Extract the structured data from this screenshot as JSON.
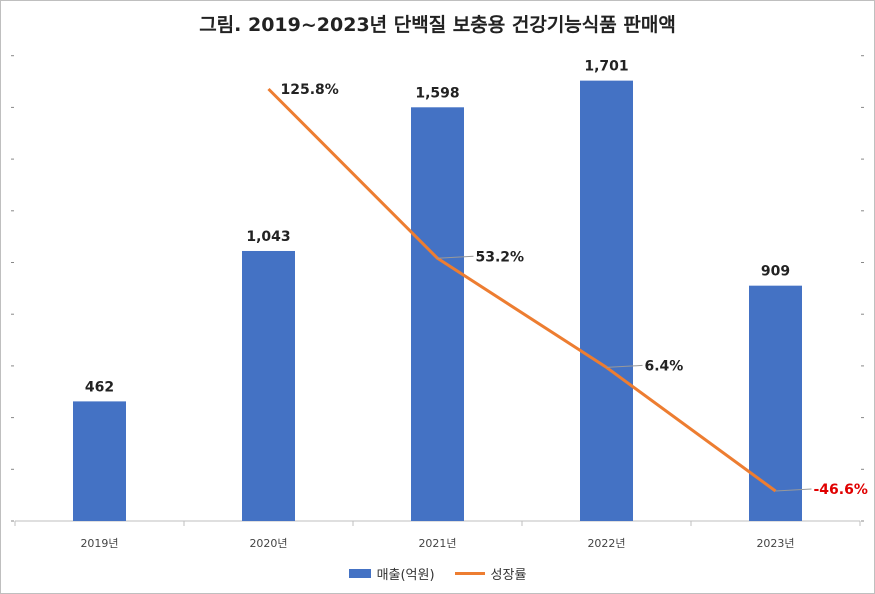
{
  "title": "그림. 2019~2023년 단백질 보충용 건강기능식품 판매액",
  "colors": {
    "bar": "#4472C4",
    "line": "#ED7D31",
    "negative_label": "#E00000"
  },
  "chart_data": {
    "type": "bar",
    "categories": [
      "2019년",
      "2020년",
      "2021년",
      "2022년",
      "2023년"
    ],
    "series": [
      {
        "name": "매출(억원)",
        "type": "bar",
        "values": [
          462,
          1043,
          1598,
          1701,
          909
        ],
        "labels": [
          "462",
          "1,043",
          "1,598",
          "1,701",
          "909"
        ]
      },
      {
        "name": "성장률",
        "type": "line",
        "values": [
          null,
          125.8,
          53.2,
          6.4,
          -46.6
        ],
        "labels": [
          "",
          "125.8%",
          "53.2%",
          "6.4%",
          "-46.6%"
        ]
      }
    ],
    "legend_position": "bottom"
  }
}
